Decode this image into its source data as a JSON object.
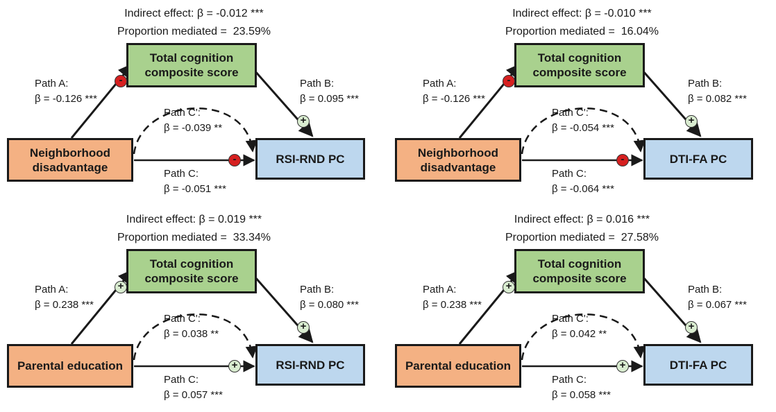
{
  "panels": [
    {
      "indirect": "Indirect effect: β = -0.012 ***",
      "proportion": "Proportion mediated =  23.59%",
      "mediator": "Total cognition composite score",
      "predictor": "Neighborhood disadvantage",
      "outcome": "RSI-RND PC",
      "path_a_label": "Path A:",
      "path_a_beta": "β = -0.126 ***",
      "path_a_sign": "-",
      "path_b_label": "Path B:",
      "path_b_beta": "β = 0.095 ***",
      "path_b_sign": "+",
      "path_cp_label": "Path C':",
      "path_cp_beta": "β = -0.039 **",
      "path_c_label": "Path C:",
      "path_c_beta": "β = -0.051 ***",
      "path_c_sign": "-"
    },
    {
      "indirect": "Indirect effect: β = -0.010 ***",
      "proportion": "Proportion mediated =  16.04%",
      "mediator": "Total cognition composite score",
      "predictor": "Neighborhood disadvantage",
      "outcome": "DTI-FA PC",
      "path_a_label": "Path A:",
      "path_a_beta": "β = -0.126 ***",
      "path_a_sign": "-",
      "path_b_label": "Path B:",
      "path_b_beta": "β = 0.082 ***",
      "path_b_sign": "+",
      "path_cp_label": "Path C':",
      "path_cp_beta": "β = -0.054 ***",
      "path_c_label": "Path C:",
      "path_c_beta": "β = -0.064 ***",
      "path_c_sign": "-"
    },
    {
      "indirect": "Indirect effect: β = 0.019 ***",
      "proportion": "Proportion mediated =  33.34%",
      "mediator": "Total cognition composite score",
      "predictor": "Parental education",
      "outcome": "RSI-RND PC",
      "path_a_label": "Path A:",
      "path_a_beta": "β = 0.238 ***",
      "path_a_sign": "+",
      "path_b_label": "Path B:",
      "path_b_beta": "β = 0.080 ***",
      "path_b_sign": "+",
      "path_cp_label": "Path C':",
      "path_cp_beta": "β = 0.038 **",
      "path_c_label": "Path C:",
      "path_c_beta": "β = 0.057 ***",
      "path_c_sign": "+"
    },
    {
      "indirect": "Indirect effect: β = 0.016 ***",
      "proportion": "Proportion mediated =  27.58%",
      "mediator": "Total cognition composite score",
      "predictor": "Parental education",
      "outcome": "DTI-FA PC",
      "path_a_label": "Path A:",
      "path_a_beta": "β = 0.238 ***",
      "path_a_sign": "+",
      "path_b_label": "Path B:",
      "path_b_beta": "β = 0.067 ***",
      "path_b_sign": "+",
      "path_cp_label": "Path C':",
      "path_cp_beta": "β = 0.042 **",
      "path_c_label": "Path C:",
      "path_c_beta": "β = 0.058 ***",
      "path_c_sign": "+"
    }
  ],
  "colors": {
    "mediator_fill": "#a9d18e",
    "predictor_fill": "#f4b183",
    "outcome_fill": "#bdd7ee",
    "negative_sign": "#d62020",
    "positive_sign": "#d9ecd0"
  }
}
